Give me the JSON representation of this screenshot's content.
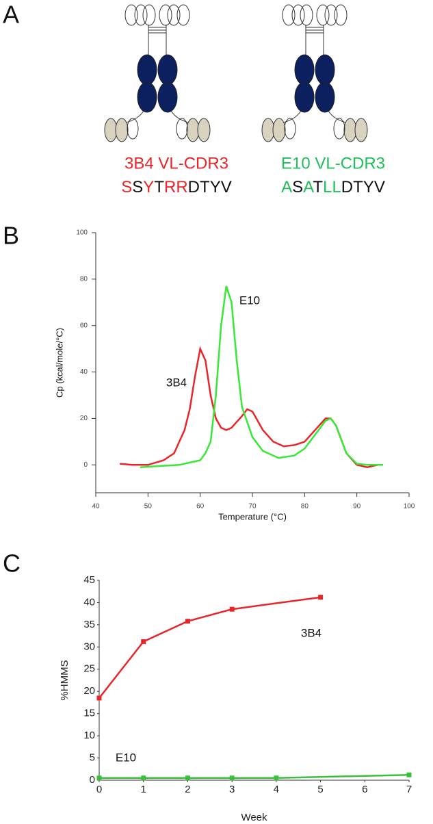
{
  "panel_labels": [
    "A",
    "B",
    "C"
  ],
  "panel_a": {
    "constructs": [
      {
        "label": "3B4 VL-CDR3",
        "color": "#e8262a",
        "residues": [
          {
            "text": "S",
            "color": "#e8262a"
          },
          {
            "text": "S",
            "color": "#111111"
          },
          {
            "text": "Y",
            "color": "#e8262a"
          },
          {
            "text": "T",
            "color": "#111111"
          },
          {
            "text": "R",
            "color": "#e8262a"
          },
          {
            "text": "R",
            "color": "#e8262a"
          },
          {
            "text": "D",
            "color": "#111111"
          },
          {
            "text": "T",
            "color": "#111111"
          },
          {
            "text": "Y",
            "color": "#111111"
          },
          {
            "text": "V",
            "color": "#111111"
          }
        ]
      },
      {
        "label": "E10 VL-CDR3",
        "color": "#1fbf5a",
        "residues": [
          {
            "text": "A",
            "color": "#1fbf5a"
          },
          {
            "text": "S",
            "color": "#111111"
          },
          {
            "text": "A",
            "color": "#1fbf5a"
          },
          {
            "text": "T",
            "color": "#111111"
          },
          {
            "text": "L",
            "color": "#1fbf5a"
          },
          {
            "text": "L",
            "color": "#1fbf5a"
          },
          {
            "text": "D",
            "color": "#111111"
          },
          {
            "text": "T",
            "color": "#111111"
          },
          {
            "text": "Y",
            "color": "#111111"
          },
          {
            "text": "V",
            "color": "#111111"
          }
        ]
      }
    ]
  },
  "chart_data": [
    {
      "type": "line",
      "xlabel": "Temperature (°C)",
      "ylabel": "Cp (kcal/mole/°C)",
      "xlim": [
        40,
        100
      ],
      "xticks": [
        40,
        50,
        60,
        70,
        80,
        90,
        100
      ],
      "ylim": [
        -12,
        100
      ],
      "yticks": [
        0,
        20,
        40,
        60,
        80,
        100
      ],
      "series": [
        {
          "name": "3B4",
          "color": "#e8262a",
          "x": [
            44.6,
            47,
            50,
            53,
            55,
            57,
            58,
            59,
            60,
            61,
            62,
            63,
            64,
            65,
            66,
            68,
            69,
            70,
            72,
            74,
            76,
            78,
            80,
            82,
            84,
            85,
            86,
            88,
            90,
            92,
            94,
            95
          ],
          "values": [
            0.5,
            0,
            0,
            2,
            5,
            15,
            24,
            38,
            50,
            45,
            30,
            20,
            16,
            15,
            16,
            21,
            24,
            23,
            15,
            10,
            8,
            8.5,
            10,
            15,
            20,
            20,
            17,
            5,
            0,
            -1,
            0,
            0
          ]
        },
        {
          "name": "E10",
          "color": "#38e838",
          "x": [
            48.5,
            52,
            56,
            60,
            61,
            62,
            63,
            64,
            65,
            66,
            67,
            68,
            70,
            72,
            75,
            78,
            80,
            82,
            84,
            85,
            86,
            88,
            90,
            92,
            95
          ],
          "values": [
            -1,
            -0.5,
            0,
            2,
            5,
            10,
            30,
            60,
            77,
            70,
            45,
            25,
            12,
            6,
            3,
            4,
            7,
            13,
            19,
            20,
            17,
            5,
            0.5,
            0,
            0
          ]
        }
      ]
    },
    {
      "type": "line",
      "marker": "square",
      "xlabel": "Week",
      "ylabel": "%HMMS",
      "xlim": [
        0,
        7
      ],
      "xticks": [
        0,
        1,
        2,
        3,
        4,
        5,
        6,
        7
      ],
      "ylim": [
        0,
        45
      ],
      "yticks": [
        0,
        5,
        10,
        15,
        20,
        25,
        30,
        35,
        40,
        45
      ],
      "series": [
        {
          "name": "3B4",
          "color": "#e8262a",
          "x": [
            0,
            1,
            2,
            3,
            5
          ],
          "values": [
            18.5,
            31.2,
            35.8,
            38.5,
            41.2
          ]
        },
        {
          "name": "E10",
          "color": "#3cbf3c",
          "x": [
            0,
            1,
            2,
            3,
            4,
            7
          ],
          "values": [
            0.5,
            0.5,
            0.5,
            0.5,
            0.5,
            1.2
          ]
        }
      ]
    }
  ]
}
